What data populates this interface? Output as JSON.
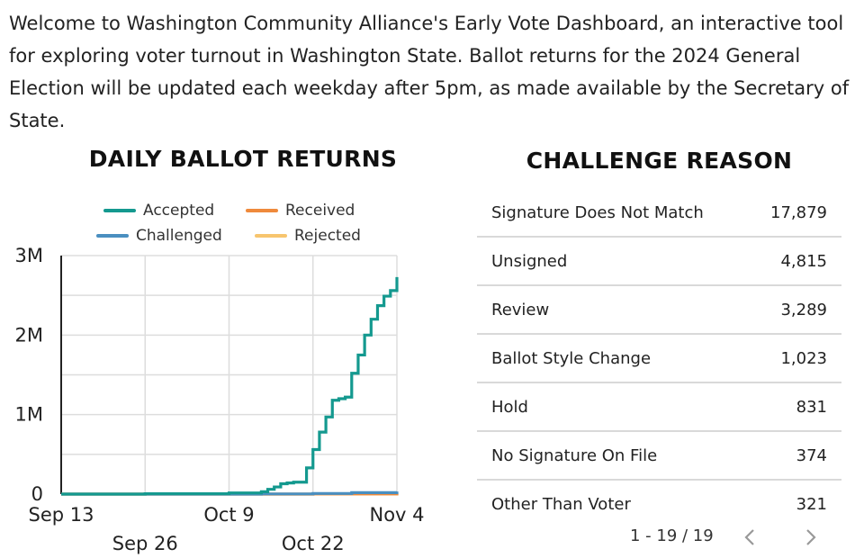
{
  "intro_text": "Welcome to Washington Community Alliance's Early Vote Dashboard, an interactive tool for exploring voter turnout in Washington State. Ballot returns for the 2024 General Election will be updated each weekday after 5pm, as made available by the Secretary of State.",
  "chart_title": "DAILY BALLOT RETURNS",
  "table_title": "CHALLENGE REASON",
  "colors": {
    "accepted": "#14998f",
    "received": "#ef8a3c",
    "challenged": "#4a8fc0",
    "rejected": "#f7c56e",
    "grid": "#dddddd",
    "axis": "#222222"
  },
  "chart_data": {
    "type": "line",
    "title": "DAILY BALLOT RETURNS",
    "xlabel": "",
    "ylabel": "",
    "legend_position": "top",
    "x_ticks": [
      "Sep 13",
      "Sep 26",
      "Oct 9",
      "Oct 22",
      "Nov 4"
    ],
    "x_range": [
      "2024-09-13",
      "2024-11-04"
    ],
    "y_ticks": [
      "0",
      "1M",
      "2M",
      "3M"
    ],
    "y_tick_values": [
      0,
      1000000,
      2000000,
      3000000
    ],
    "ylim": [
      0,
      3000000
    ],
    "grid": true,
    "step": true,
    "series": [
      {
        "name": "Accepted",
        "color_key": "accepted",
        "x": [
          "2024-09-13",
          "2024-09-26",
          "2024-10-09",
          "2024-10-14",
          "2024-10-15",
          "2024-10-16",
          "2024-10-17",
          "2024-10-18",
          "2024-10-19",
          "2024-10-21",
          "2024-10-22",
          "2024-10-23",
          "2024-10-24",
          "2024-10-25",
          "2024-10-26",
          "2024-10-27",
          "2024-10-28",
          "2024-10-29",
          "2024-10-30",
          "2024-10-31",
          "2024-11-01",
          "2024-11-02",
          "2024-11-03",
          "2024-11-04"
        ],
        "values": [
          0,
          5000,
          15000,
          30000,
          60000,
          90000,
          130000,
          140000,
          150000,
          330000,
          560000,
          780000,
          970000,
          1180000,
          1200000,
          1220000,
          1520000,
          1750000,
          2000000,
          2200000,
          2370000,
          2490000,
          2560000,
          2730000
        ]
      },
      {
        "name": "Challenged",
        "color_key": "challenged",
        "x": [
          "2024-09-13",
          "2024-10-14",
          "2024-10-22",
          "2024-10-28",
          "2024-11-04"
        ],
        "values": [
          0,
          2000,
          8000,
          18000,
          32000
        ]
      },
      {
        "name": "Received",
        "color_key": "received",
        "x": [
          "2024-09-13",
          "2024-10-22",
          "2024-11-04"
        ],
        "values": [
          0,
          3000,
          8000
        ]
      },
      {
        "name": "Rejected",
        "color_key": "rejected",
        "x": [
          "2024-09-13",
          "2024-10-22",
          "2024-11-04"
        ],
        "values": [
          0,
          1000,
          3000
        ]
      }
    ]
  },
  "challenge_reasons": [
    {
      "reason": "Signature Does Not Match",
      "count": "17,879"
    },
    {
      "reason": "Unsigned",
      "count": "4,815"
    },
    {
      "reason": "Review",
      "count": "3,289"
    },
    {
      "reason": "Ballot Style Change",
      "count": "1,023"
    },
    {
      "reason": "Hold",
      "count": "831"
    },
    {
      "reason": "No Signature On File",
      "count": "374"
    },
    {
      "reason": "Other Than Voter",
      "count": "321"
    }
  ],
  "pager": {
    "text": "1 - 19 / 19",
    "prev_icon": "chevron-left-icon",
    "next_icon": "chevron-right-icon"
  }
}
